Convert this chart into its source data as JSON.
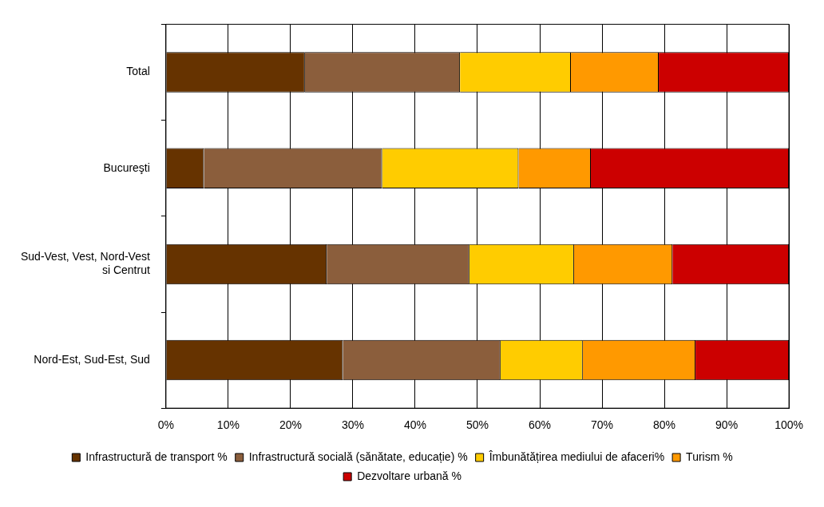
{
  "chart_data": {
    "type": "bar",
    "orientation": "horizontal",
    "stacked": true,
    "categories": [
      "Total",
      "Bucureşti",
      "Sud-Vest, Vest, Nord-Vest si Centrut",
      "Nord-Est, Sud-Est, Sud"
    ],
    "series": [
      {
        "name": "Infrastructură de transport %",
        "color": "#663300",
        "values": [
          22.3,
          6.1,
          25.8,
          28.4
        ]
      },
      {
        "name": "Infrastructură socială (sănătate, educație) %",
        "color": "#8b5e3c",
        "values": [
          24.9,
          28.6,
          22.9,
          25.3
        ]
      },
      {
        "name": "Îmbunătățirea mediului de afaceri%",
        "color": "#ffcc00",
        "values": [
          17.8,
          21.9,
          16.8,
          13.2
        ]
      },
      {
        "name": "Turism %",
        "color": "#ff9900",
        "values": [
          14.1,
          11.6,
          15.8,
          18.1
        ]
      },
      {
        "name": "Dezvoltare urbană %",
        "color": "#cc0000",
        "values": [
          20.9,
          31.8,
          18.7,
          15.0
        ]
      }
    ],
    "xlim": [
      0,
      100
    ],
    "xticks": [
      {
        "value": 0,
        "label": "0%"
      },
      {
        "value": 10,
        "label": "10%"
      },
      {
        "value": 20,
        "label": "20%"
      },
      {
        "value": 30,
        "label": "30%"
      },
      {
        "value": 40,
        "label": "40%"
      },
      {
        "value": 50,
        "label": "50%"
      },
      {
        "value": 60,
        "label": "60%"
      },
      {
        "value": 70,
        "label": "70%"
      },
      {
        "value": 80,
        "label": "80%"
      },
      {
        "value": 90,
        "label": "90%"
      },
      {
        "value": 100,
        "label": "100%"
      }
    ],
    "grid": "x",
    "legend": "bottom"
  }
}
